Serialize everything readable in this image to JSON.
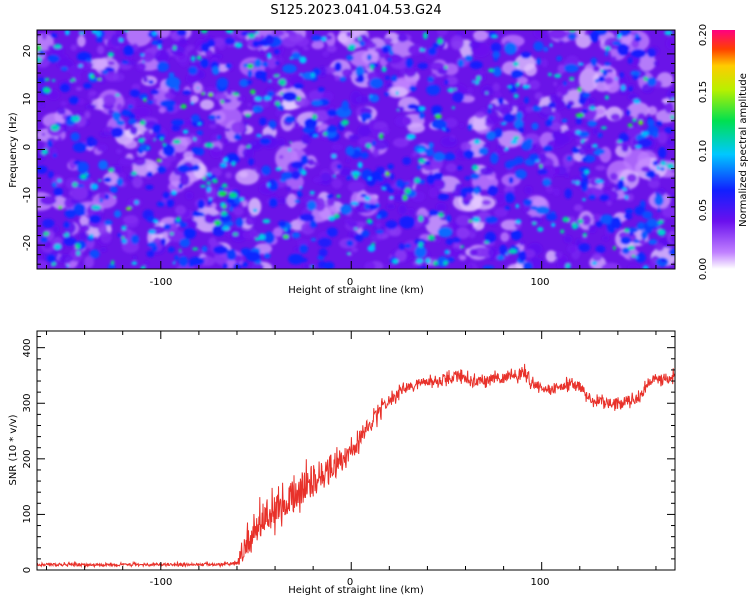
{
  "title": "S125.2023.041.04.53.G24",
  "colors": {
    "snr_line": "#e8312a",
    "axes": "#000000"
  },
  "chart_data": [
    {
      "type": "heatmap",
      "xlabel": "Height of straight line (km)",
      "ylabel": "Frequency (Hz)",
      "xlim": [
        -165,
        170
      ],
      "ylim": [
        -25,
        25
      ],
      "x_ticks": [
        -100,
        0,
        100
      ],
      "x_tick_labels": [
        "-100",
        "0",
        "100"
      ],
      "y_ticks": [
        -20,
        -10,
        0,
        10,
        20
      ],
      "y_tick_labels": [
        "-20",
        "-10",
        "0",
        "10",
        "20"
      ],
      "colorbar": {
        "label": "Normalized spectral amplitude",
        "range": [
          0,
          0.2
        ],
        "ticks": [
          0,
          0.05,
          0.1,
          0.15,
          0.2
        ],
        "tick_labels": [
          "0.00",
          "0.05",
          "0.10",
          "0.15",
          "0.20"
        ],
        "colormap": "rainbow (white-violet-blue-cyan-green-yellow-red)"
      },
      "description_values": "noise-like field, amplitudes mostly 0.02-0.08 with sparse peaks up to ~0.13"
    },
    {
      "type": "line",
      "xlabel": "Height of straight line (km)",
      "ylabel": "SNR (10 * v/v)",
      "xlim": [
        -165,
        170
      ],
      "ylim": [
        0,
        430
      ],
      "x_ticks": [
        -100,
        0,
        100
      ],
      "x_tick_labels": [
        "-100",
        "0",
        "100"
      ],
      "y_ticks": [
        0,
        100,
        200,
        300,
        400
      ],
      "y_tick_labels": [
        "0",
        "100",
        "200",
        "300",
        "400"
      ],
      "series": [
        {
          "color": "#e8312a",
          "x": [
            -165,
            -150,
            -130,
            -110,
            -90,
            -70,
            -60,
            -55,
            -50,
            -45,
            -40,
            -35,
            -30,
            -25,
            -20,
            -15,
            -10,
            -5,
            0,
            5,
            10,
            15,
            20,
            25,
            30,
            35,
            40,
            45,
            50,
            55,
            60,
            65,
            70,
            75,
            80,
            85,
            90,
            95,
            100,
            105,
            110,
            115,
            120,
            125,
            130,
            135,
            140,
            145,
            150,
            155,
            160,
            165,
            170
          ],
          "values": [
            10,
            10,
            9,
            10,
            10,
            10,
            12,
            40,
            80,
            95,
            110,
            120,
            130,
            145,
            160,
            175,
            190,
            200,
            215,
            235,
            260,
            285,
            305,
            320,
            330,
            335,
            340,
            340,
            345,
            350,
            345,
            340,
            340,
            345,
            345,
            350,
            355,
            335,
            330,
            325,
            330,
            335,
            330,
            310,
            305,
            300,
            300,
            305,
            305,
            330,
            345,
            340,
            350
          ],
          "noise_amplitude": [
            4,
            4,
            4,
            4,
            4,
            4,
            5,
            50,
            55,
            55,
            50,
            45,
            50,
            55,
            55,
            45,
            40,
            35,
            30,
            25,
            25,
            20,
            20,
            15,
            15,
            15,
            15,
            15,
            15,
            15,
            15,
            15,
            15,
            15,
            15,
            15,
            25,
            15,
            15,
            15,
            15,
            15,
            15,
            15,
            15,
            15,
            15,
            15,
            15,
            15,
            15,
            15,
            15
          ]
        }
      ]
    }
  ]
}
